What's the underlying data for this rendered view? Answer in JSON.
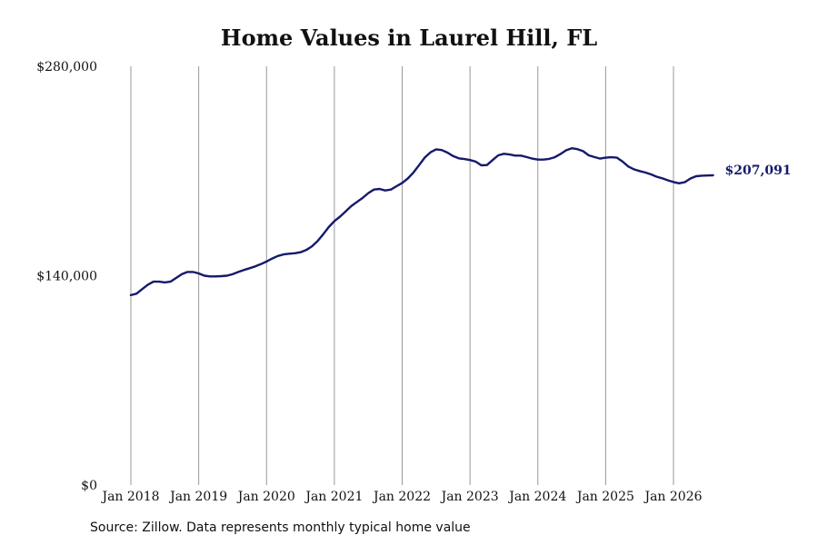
{
  "title": "Home Values in Laurel Hill, FL",
  "source": "Source: Zillow. Data represents monthly typical home value",
  "colors": {
    "line": "#141a6b",
    "grid": "#999999"
  },
  "chart_data": {
    "type": "line",
    "title": "Home Values in Laurel Hill, FL",
    "xlabel": "",
    "ylabel": "",
    "ylim": [
      0,
      280000
    ],
    "y_ticks": [
      0,
      140000,
      280000
    ],
    "y_tick_labels": [
      "$0",
      "$140,000",
      "$280,000"
    ],
    "x_ticks": [
      "2018-01",
      "2019-01",
      "2020-01",
      "2021-01",
      "2022-01",
      "2023-01",
      "2024-01",
      "2025-01",
      "2026-01"
    ],
    "x_tick_labels": [
      "Jan 2018",
      "Jan 2019",
      "Jan 2020",
      "Jan 2021",
      "Jan 2022",
      "Jan 2023",
      "Jan 2024",
      "Jan 2025",
      "Jan 2026"
    ],
    "vertical_gridlines": true,
    "end_label": "$207,091",
    "series": [
      {
        "x": [
          "2018-01",
          "2018-02",
          "2018-03",
          "2018-04",
          "2018-05",
          "2018-06",
          "2018-07",
          "2018-08",
          "2018-09",
          "2018-10",
          "2018-11",
          "2018-12",
          "2019-01",
          "2019-02",
          "2019-03",
          "2019-04",
          "2019-05",
          "2019-06",
          "2019-07",
          "2019-08",
          "2019-09",
          "2019-10",
          "2019-11",
          "2019-12",
          "2020-01",
          "2020-02",
          "2020-03",
          "2020-04",
          "2020-05",
          "2020-06",
          "2020-07",
          "2020-08",
          "2020-09",
          "2020-10",
          "2020-11",
          "2020-12",
          "2021-01",
          "2021-02",
          "2021-03",
          "2021-04",
          "2021-05",
          "2021-06",
          "2021-07",
          "2021-08",
          "2021-09",
          "2021-10",
          "2021-11",
          "2021-12",
          "2022-01",
          "2022-02",
          "2022-03",
          "2022-04",
          "2022-05",
          "2022-06",
          "2022-07",
          "2022-08",
          "2022-09",
          "2022-10",
          "2022-11",
          "2022-12",
          "2023-01",
          "2023-02",
          "2023-03",
          "2023-04",
          "2023-05",
          "2023-06",
          "2023-07",
          "2023-08",
          "2023-09",
          "2023-10",
          "2023-11",
          "2023-12",
          "2024-01",
          "2024-02",
          "2024-03",
          "2024-04",
          "2024-05",
          "2024-06",
          "2024-07",
          "2024-08",
          "2024-09",
          "2024-10",
          "2024-11",
          "2024-12",
          "2025-01",
          "2025-02",
          "2025-03",
          "2025-04",
          "2025-05",
          "2025-06",
          "2025-07",
          "2025-08",
          "2025-09",
          "2025-10",
          "2025-11",
          "2025-12",
          "2026-01",
          "2026-02",
          "2026-03",
          "2026-04",
          "2026-05",
          "2026-06",
          "2026-07",
          "2026-08"
        ],
        "values": [
          127000,
          128000,
          131000,
          134000,
          136000,
          136000,
          135500,
          136000,
          138500,
          141000,
          142500,
          142500,
          141500,
          140000,
          139500,
          139500,
          139700,
          140000,
          141000,
          142500,
          143800,
          145000,
          146200,
          147700,
          149500,
          151500,
          153200,
          154200,
          154700,
          155000,
          155700,
          157100,
          159500,
          163000,
          167500,
          172500,
          176500,
          179500,
          183000,
          186500,
          189300,
          192000,
          195200,
          197600,
          198000,
          197000,
          197600,
          199800,
          202000,
          205000,
          209000,
          214000,
          219000,
          222500,
          224500,
          224000,
          222300,
          220000,
          218500,
          218000,
          217300,
          216300,
          213800,
          214000,
          217300,
          220500,
          221500,
          221000,
          220300,
          220300,
          219300,
          218300,
          217600,
          217600,
          218100,
          219200,
          221300,
          223800,
          225200,
          224600,
          223300,
          220500,
          219300,
          218300,
          218900,
          219200,
          218900,
          216300,
          213000,
          211100,
          210000,
          209000,
          207800,
          206200,
          205100,
          203800,
          202600,
          201800,
          202500,
          205000,
          206500,
          206900,
          207000,
          207091
        ]
      }
    ]
  }
}
